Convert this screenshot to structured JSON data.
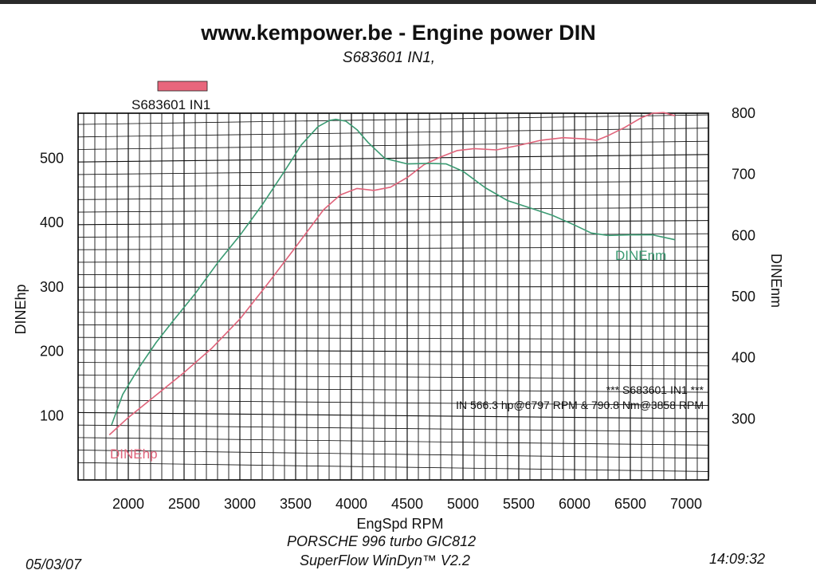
{
  "header": {
    "title": "www.kempower.be - Engine power DIN",
    "subtitle": "S683601 IN1,"
  },
  "footer": {
    "date": "05/03/07",
    "time": "14:09:32",
    "vehicle": "PORSCHE 996 turbo GIC812",
    "software": "SuperFlow WinDyn™ V2.2"
  },
  "colors": {
    "hp": "#e0637a",
    "nm": "#3a9a72",
    "legend_swatch": "#e8667c",
    "grid": "#111111"
  },
  "chart_data": {
    "type": "line",
    "title": "www.kempower.be - Engine power DIN",
    "subtitle": "S683601 IN1,",
    "xlabel": "EngSpd  RPM",
    "ylabel_left": "DINEhp",
    "ylabel_right": "DINEnm",
    "xlim": [
      1550,
      7200
    ],
    "ylim_left": [
      0,
      570
    ],
    "ylim_right": [
      200,
      800
    ],
    "x_ticks": [
      2000,
      2500,
      3000,
      3500,
      4000,
      4500,
      5000,
      5500,
      6000,
      6500,
      7000
    ],
    "y_left_ticks": [
      100,
      200,
      300,
      400,
      500
    ],
    "y_right_ticks": [
      300,
      400,
      500,
      600,
      700,
      800
    ],
    "grid": true,
    "legend": {
      "label": "S683601 IN1",
      "placement": "top-left"
    },
    "summary": {
      "line1": "*** S683601 IN1 ***",
      "line2": "IN  566.3 hp@6797 RPM & 790.8 Nm@3858 RPM"
    },
    "series": [
      {
        "name": "DINEhp",
        "axis": "left",
        "color": "#e0637a",
        "x": [
          1830,
          2000,
          2250,
          2500,
          2750,
          3000,
          3250,
          3500,
          3750,
          3900,
          4050,
          4200,
          4350,
          4500,
          4650,
          4800,
          4950,
          5100,
          5300,
          5500,
          5700,
          5900,
          6100,
          6200,
          6300,
          6450,
          6600,
          6700,
          6800,
          6900
        ],
        "y": [
          70,
          97,
          132,
          167,
          205,
          250,
          305,
          362,
          420,
          443,
          453,
          450,
          455,
          470,
          490,
          502,
          512,
          515,
          513,
          520,
          528,
          532,
          530,
          528,
          535,
          548,
          563,
          570,
          571,
          566
        ]
      },
      {
        "name": "DINEnm",
        "axis": "right",
        "color": "#3a9a72",
        "x": [
          1850,
          1950,
          2100,
          2250,
          2400,
          2600,
          2800,
          3000,
          3200,
          3400,
          3550,
          3700,
          3800,
          3860,
          3950,
          4050,
          4150,
          4300,
          4500,
          4700,
          4850,
          5000,
          5200,
          5400,
          5600,
          5800,
          6000,
          6150,
          6300,
          6500,
          6700,
          6900
        ],
        "y": [
          290,
          340,
          385,
          425,
          460,
          505,
          555,
          600,
          650,
          705,
          748,
          778,
          788,
          790,
          787,
          773,
          752,
          726,
          717,
          718,
          717,
          705,
          678,
          657,
          645,
          633,
          617,
          604,
          600,
          601,
          601,
          593
        ]
      }
    ]
  }
}
